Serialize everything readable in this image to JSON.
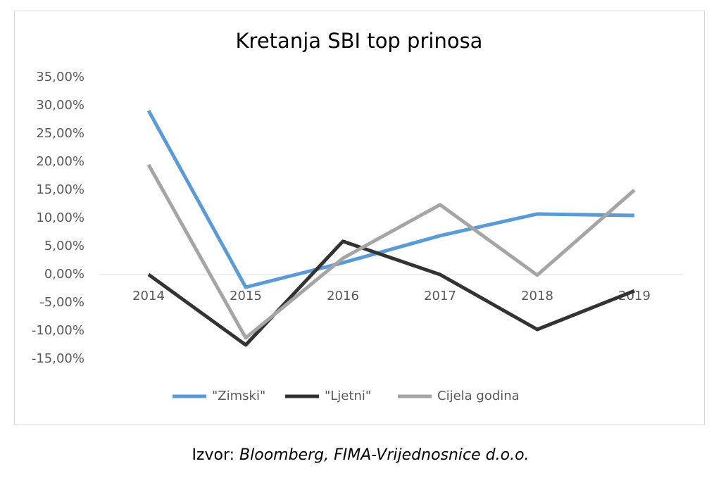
{
  "chart_data": {
    "type": "line",
    "title": "Kretanja SBI top prinosa",
    "categories": [
      "2014",
      "2015",
      "2016",
      "2017",
      "2018",
      "2019"
    ],
    "series": [
      {
        "name": "\"Zimski\"",
        "color": "#5b9bd5",
        "values": [
          29.1,
          -2.25,
          2.1,
          6.9,
          10.75,
          10.5
        ]
      },
      {
        "name": "\"Ljetni\"",
        "color": "#333333",
        "values": [
          0,
          -12.5,
          5.9,
          0,
          -9.75,
          -2.9
        ]
      },
      {
        "name": "Cijela godina",
        "color": "#a5a5a5",
        "values": [
          19.5,
          -11.25,
          2.9,
          12.4,
          -0.1,
          15
        ]
      }
    ],
    "ylim": [
      -15,
      35
    ],
    "yticks": [
      {
        "value": -15,
        "label": "-15,00%"
      },
      {
        "value": -10,
        "label": "-10,00%"
      },
      {
        "value": -5,
        "label": "-5,00%"
      },
      {
        "value": 0,
        "label": "0,00%"
      },
      {
        "value": 5,
        "label": "5,00%"
      },
      {
        "value": 10,
        "label": "10,00%"
      },
      {
        "value": 15,
        "label": "15,00%"
      },
      {
        "value": 20,
        "label": "20,00%"
      },
      {
        "value": 25,
        "label": "25,00%"
      },
      {
        "value": 30,
        "label": "30,00%"
      },
      {
        "value": 35,
        "label": "35,00%"
      }
    ],
    "grid": false,
    "legend": "bottom"
  },
  "source": {
    "prefix": "Izvor:",
    "name": "Bloomberg, FIMA-Vrijednosnice d.o.o."
  }
}
